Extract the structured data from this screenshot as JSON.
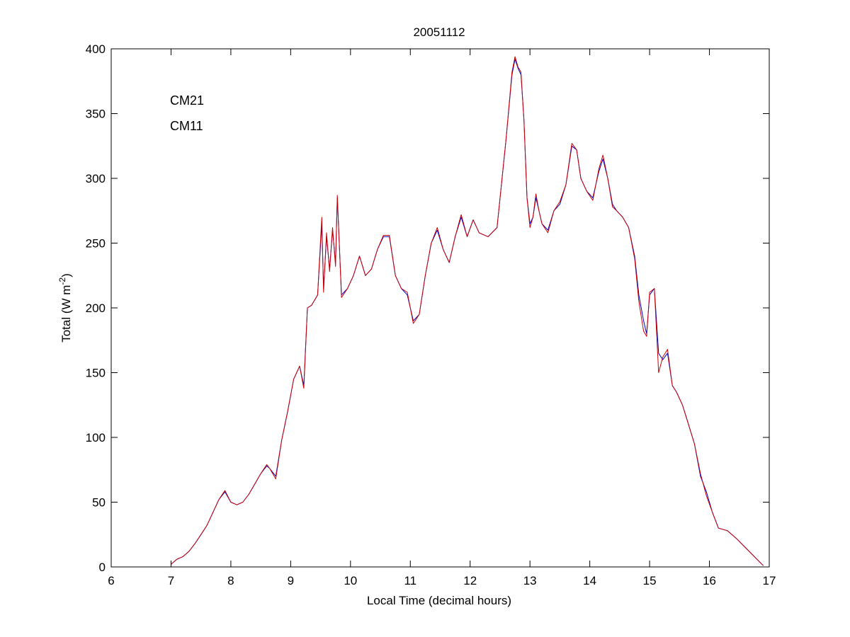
{
  "chart_data": {
    "type": "line",
    "title": "20051112",
    "xlabel": "Local Time (decimal hours)",
    "ylabel": "Total (W m",
    "ylabel_sup": "-2",
    "ylabel_end": ")",
    "xlim": [
      6,
      17
    ],
    "ylim": [
      0,
      400
    ],
    "xticks": [
      6,
      7,
      8,
      9,
      10,
      11,
      12,
      13,
      14,
      15,
      16,
      17
    ],
    "yticks": [
      0,
      50,
      100,
      150,
      200,
      250,
      300,
      350,
      400
    ],
    "grid": false,
    "legend_placement": "top-left",
    "series": [
      {
        "name": "CM21",
        "color": "#0000cc",
        "x": [
          7.0,
          7.1,
          7.2,
          7.3,
          7.4,
          7.5,
          7.6,
          7.7,
          7.8,
          7.9,
          8.0,
          8.1,
          8.2,
          8.3,
          8.4,
          8.5,
          8.6,
          8.65,
          8.75,
          8.85,
          8.95,
          9.05,
          9.15,
          9.22,
          9.28,
          9.35,
          9.45,
          9.52,
          9.55,
          9.6,
          9.65,
          9.7,
          9.75,
          9.78,
          9.85,
          9.95,
          10.05,
          10.15,
          10.25,
          10.35,
          10.45,
          10.55,
          10.65,
          10.75,
          10.85,
          10.95,
          11.05,
          11.15,
          11.25,
          11.35,
          11.45,
          11.55,
          11.65,
          11.75,
          11.85,
          11.95,
          12.05,
          12.15,
          12.3,
          12.45,
          12.6,
          12.7,
          12.75,
          12.8,
          12.85,
          12.9,
          12.95,
          13.0,
          13.05,
          13.1,
          13.15,
          13.2,
          13.3,
          13.4,
          13.5,
          13.6,
          13.7,
          13.78,
          13.85,
          13.95,
          14.05,
          14.15,
          14.22,
          14.3,
          14.38,
          14.45,
          14.55,
          14.65,
          14.75,
          14.82,
          14.9,
          14.95,
          15.0,
          15.08,
          15.15,
          15.22,
          15.3,
          15.38,
          15.45,
          15.55,
          15.65,
          15.75,
          15.85,
          15.95,
          16.05,
          16.15,
          16.3,
          16.45,
          16.6,
          16.75,
          16.9
        ],
        "y": [
          2,
          6,
          8,
          12,
          18,
          25,
          32,
          42,
          52,
          58,
          50,
          48,
          50,
          56,
          64,
          72,
          78,
          76,
          70,
          98,
          120,
          145,
          155,
          140,
          200,
          202,
          210,
          265,
          215,
          255,
          230,
          260,
          235,
          285,
          210,
          215,
          225,
          240,
          225,
          230,
          245,
          255,
          255,
          225,
          215,
          210,
          190,
          195,
          225,
          250,
          260,
          245,
          235,
          255,
          270,
          255,
          268,
          258,
          255,
          262,
          330,
          380,
          392,
          385,
          380,
          345,
          285,
          265,
          270,
          285,
          275,
          265,
          260,
          275,
          280,
          295,
          325,
          322,
          300,
          290,
          285,
          305,
          315,
          300,
          280,
          275,
          270,
          262,
          240,
          210,
          190,
          180,
          210,
          215,
          165,
          160,
          165,
          140,
          135,
          125,
          110,
          95,
          70,
          58,
          42,
          30,
          28,
          22,
          15,
          8,
          1
        ]
      },
      {
        "name": "CM11",
        "color": "#cc0000",
        "x": [
          7.0,
          7.1,
          7.2,
          7.3,
          7.4,
          7.5,
          7.6,
          7.7,
          7.8,
          7.9,
          8.0,
          8.1,
          8.2,
          8.3,
          8.4,
          8.5,
          8.6,
          8.65,
          8.75,
          8.85,
          8.95,
          9.05,
          9.15,
          9.22,
          9.28,
          9.35,
          9.45,
          9.52,
          9.55,
          9.6,
          9.65,
          9.7,
          9.75,
          9.78,
          9.85,
          9.95,
          10.05,
          10.15,
          10.25,
          10.35,
          10.45,
          10.55,
          10.65,
          10.75,
          10.85,
          10.95,
          11.05,
          11.15,
          11.25,
          11.35,
          11.45,
          11.55,
          11.65,
          11.75,
          11.85,
          11.95,
          12.05,
          12.15,
          12.3,
          12.45,
          12.6,
          12.7,
          12.75,
          12.8,
          12.85,
          12.9,
          12.95,
          13.0,
          13.05,
          13.1,
          13.15,
          13.2,
          13.3,
          13.4,
          13.5,
          13.6,
          13.7,
          13.78,
          13.85,
          13.95,
          14.05,
          14.15,
          14.22,
          14.3,
          14.38,
          14.45,
          14.55,
          14.65,
          14.75,
          14.82,
          14.9,
          14.95,
          15.0,
          15.08,
          15.15,
          15.22,
          15.3,
          15.38,
          15.45,
          15.55,
          15.65,
          15.75,
          15.85,
          15.95,
          16.05,
          16.15,
          16.3,
          16.45,
          16.6,
          16.75,
          16.9
        ],
        "y": [
          2,
          6,
          8,
          12,
          18,
          25,
          32,
          42,
          52,
          59,
          50,
          48,
          50,
          56,
          64,
          72,
          79,
          76,
          68,
          98,
          120,
          145,
          155,
          138,
          200,
          202,
          210,
          270,
          212,
          258,
          228,
          262,
          232,
          287,
          208,
          215,
          225,
          240,
          225,
          230,
          245,
          256,
          256,
          225,
          215,
          212,
          188,
          195,
          225,
          250,
          262,
          245,
          235,
          255,
          272,
          255,
          268,
          258,
          255,
          262,
          330,
          382,
          394,
          386,
          382,
          345,
          285,
          262,
          270,
          288,
          275,
          265,
          258,
          275,
          282,
          295,
          327,
          322,
          300,
          290,
          283,
          307,
          318,
          300,
          278,
          275,
          270,
          262,
          238,
          205,
          182,
          178,
          212,
          215,
          150,
          162,
          168,
          140,
          135,
          125,
          110,
          95,
          72,
          55,
          42,
          30,
          28,
          22,
          15,
          8,
          1
        ]
      }
    ]
  }
}
